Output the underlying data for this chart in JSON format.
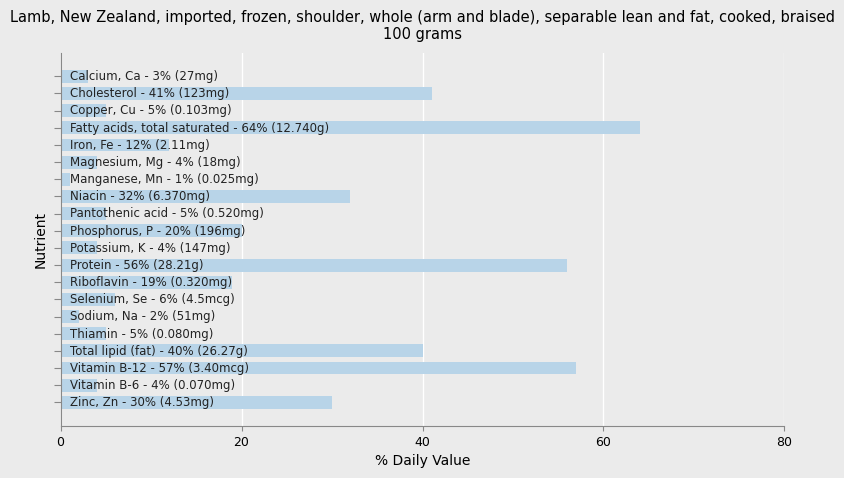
{
  "title": "Lamb, New Zealand, imported, frozen, shoulder, whole (arm and blade), separable lean and fat, cooked, braised\n100 grams",
  "xlabel": "% Daily Value",
  "ylabel": "Nutrient",
  "background_color": "#ebebeb",
  "bar_color": "#b8d4e8",
  "xlim": [
    0,
    80
  ],
  "nutrients": [
    {
      "name": "Calcium, Ca - 3% (27mg)",
      "value": 3
    },
    {
      "name": "Cholesterol - 41% (123mg)",
      "value": 41
    },
    {
      "name": "Copper, Cu - 5% (0.103mg)",
      "value": 5
    },
    {
      "name": "Fatty acids, total saturated - 64% (12.740g)",
      "value": 64
    },
    {
      "name": "Iron, Fe - 12% (2.11mg)",
      "value": 12
    },
    {
      "name": "Magnesium, Mg - 4% (18mg)",
      "value": 4
    },
    {
      "name": "Manganese, Mn - 1% (0.025mg)",
      "value": 1
    },
    {
      "name": "Niacin - 32% (6.370mg)",
      "value": 32
    },
    {
      "name": "Pantothenic acid - 5% (0.520mg)",
      "value": 5
    },
    {
      "name": "Phosphorus, P - 20% (196mg)",
      "value": 20
    },
    {
      "name": "Potassium, K - 4% (147mg)",
      "value": 4
    },
    {
      "name": "Protein - 56% (28.21g)",
      "value": 56
    },
    {
      "name": "Riboflavin - 19% (0.320mg)",
      "value": 19
    },
    {
      "name": "Selenium, Se - 6% (4.5mcg)",
      "value": 6
    },
    {
      "name": "Sodium, Na - 2% (51mg)",
      "value": 2
    },
    {
      "name": "Thiamin - 5% (0.080mg)",
      "value": 5
    },
    {
      "name": "Total lipid (fat) - 40% (26.27g)",
      "value": 40
    },
    {
      "name": "Vitamin B-12 - 57% (3.40mcg)",
      "value": 57
    },
    {
      "name": "Vitamin B-6 - 4% (0.070mg)",
      "value": 4
    },
    {
      "name": "Zinc, Zn - 30% (4.53mg)",
      "value": 30
    }
  ],
  "xticks": [
    0,
    20,
    40,
    60,
    80
  ],
  "title_fontsize": 10.5,
  "label_fontsize": 8.5,
  "axis_label_fontsize": 10,
  "tick_fontsize": 9
}
